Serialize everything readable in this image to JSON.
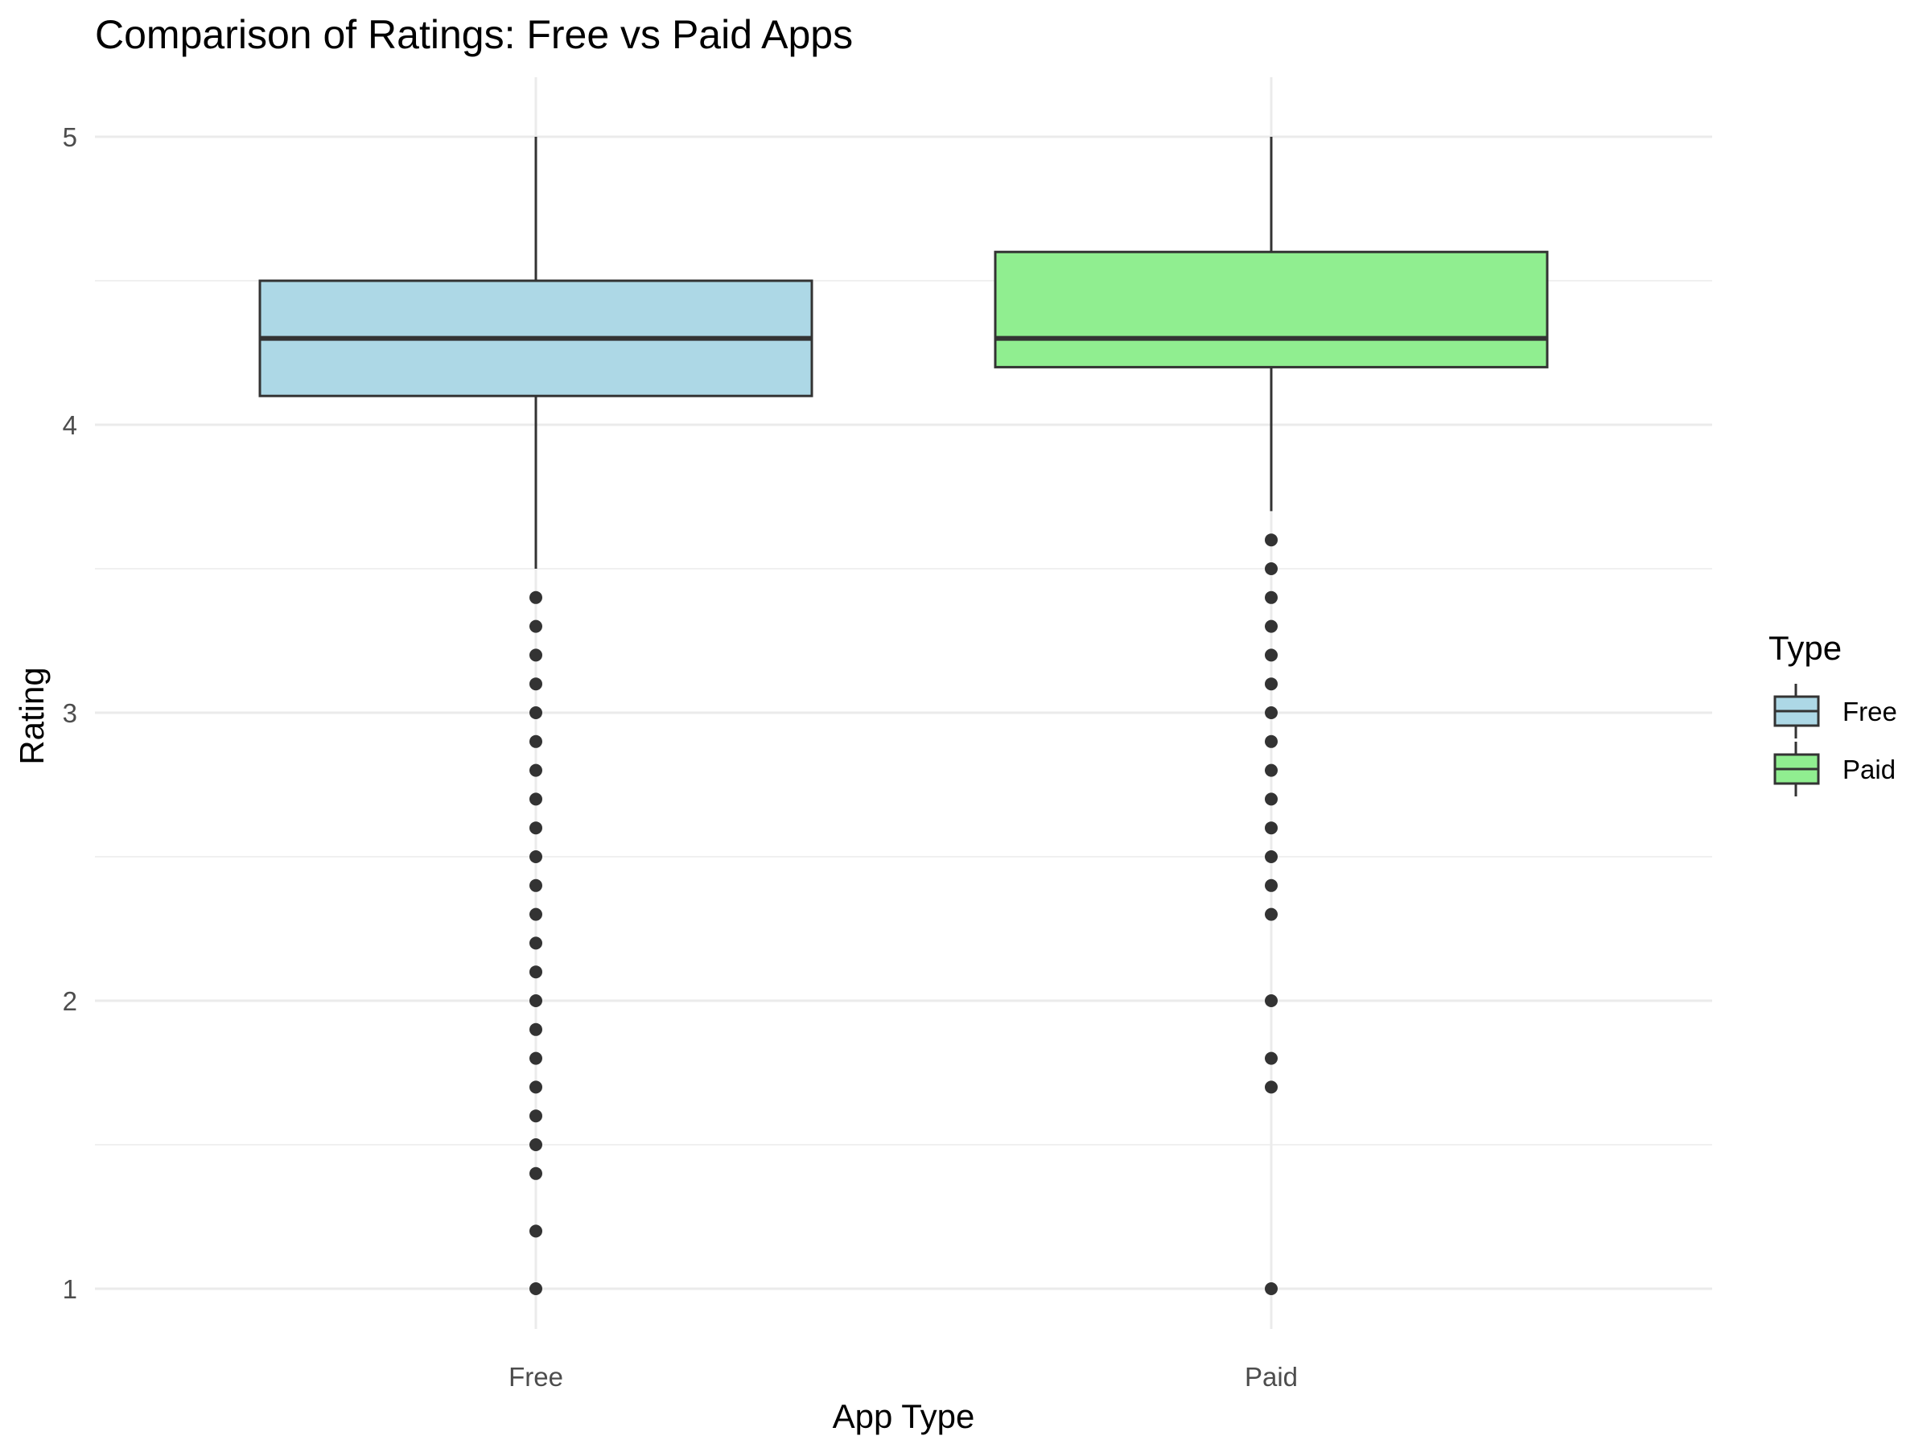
{
  "chart_data": {
    "type": "boxplot",
    "title": "Comparison of Ratings: Free vs Paid Apps",
    "xlabel": "App Type",
    "ylabel": "Rating",
    "categories": [
      "Free",
      "Paid"
    ],
    "ylim": [
      0.8,
      5.2
    ],
    "yticks": [
      1,
      2,
      3,
      4,
      5
    ],
    "grid": true,
    "legend": {
      "title": "Type",
      "position": "right",
      "entries": [
        "Free",
        "Paid"
      ]
    },
    "colors": {
      "Free": "#add8e6",
      "Paid": "#90ee90",
      "outline": "#333333",
      "grid": "#ebebeb"
    },
    "boxes": [
      {
        "category": "Free",
        "whisker_low": 3.5,
        "q1": 4.1,
        "median": 4.3,
        "q3": 4.5,
        "whisker_high": 5.0,
        "outliers": [
          3.4,
          3.3,
          3.2,
          3.1,
          3.0,
          2.9,
          2.8,
          2.7,
          2.6,
          2.5,
          2.4,
          2.3,
          2.2,
          2.1,
          2.0,
          1.9,
          1.8,
          1.7,
          1.6,
          1.5,
          1.4,
          1.2,
          1.0
        ]
      },
      {
        "category": "Paid",
        "whisker_low": 3.7,
        "q1": 4.2,
        "median": 4.3,
        "q3": 4.6,
        "whisker_high": 5.0,
        "outliers": [
          3.6,
          3.5,
          3.4,
          3.3,
          3.2,
          3.1,
          3.0,
          2.9,
          2.8,
          2.7,
          2.6,
          2.5,
          2.4,
          2.3,
          2.0,
          1.8,
          1.7,
          1.0
        ]
      }
    ]
  }
}
